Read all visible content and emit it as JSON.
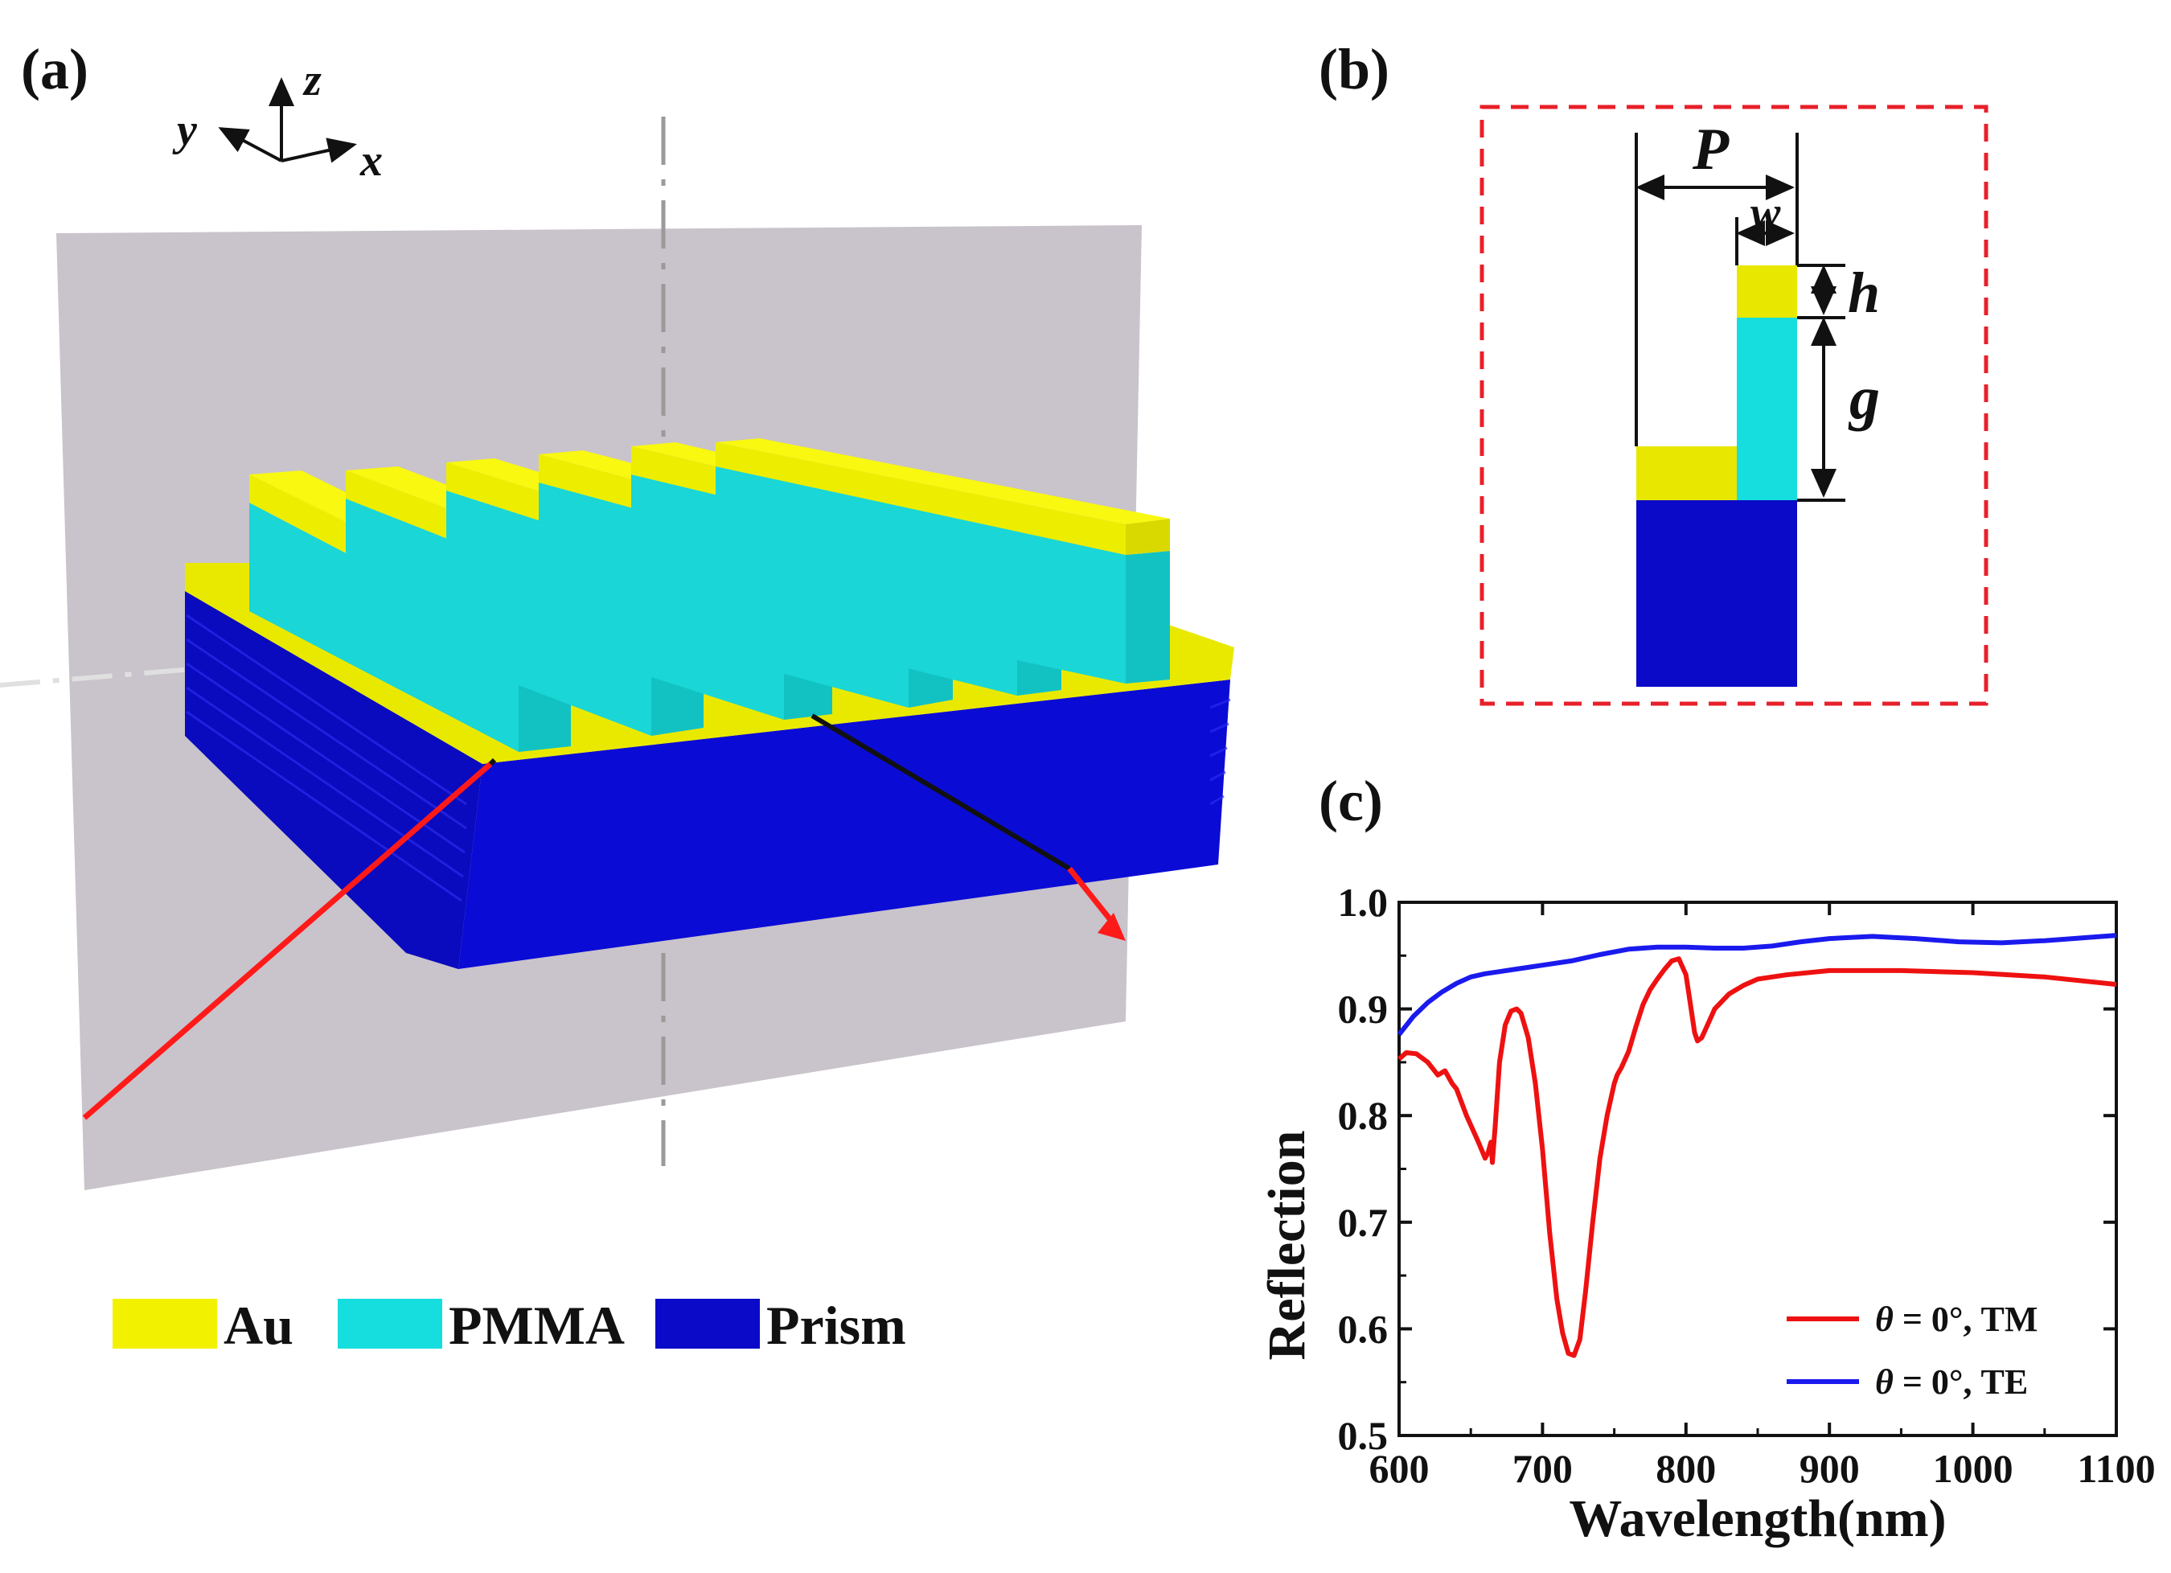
{
  "figure": {
    "panel_a_label": "(a)",
    "panel_b_label": "(b)",
    "panel_c_label": "(c)",
    "axes_3d": {
      "x": "x",
      "y": "y",
      "z": "z"
    },
    "legend": [
      {
        "label": "Au",
        "color": "#f2f200"
      },
      {
        "label": "PMMA",
        "color": "#17dede"
      },
      {
        "label": "Prism",
        "color": "#0a0ac8"
      }
    ],
    "dimensions": {
      "period": "P",
      "width": "w",
      "height": "h",
      "gap": "g"
    },
    "colors": {
      "gold": "#f2f200",
      "pmma": "#17dede",
      "prism": "#0a0ac8",
      "plane": "#c9c3cb",
      "incident_ray": "#ff1a1a",
      "dashed_box": "#e8202a",
      "tm_curve": "#ee1111",
      "te_curve": "#1a1aee"
    }
  },
  "chart_data": {
    "type": "line",
    "title": "",
    "xlabel": "Wavelength(nm)",
    "ylabel": "Reflection",
    "xlim": [
      600,
      1100
    ],
    "ylim": [
      0.5,
      1.0
    ],
    "xticks": [
      600,
      700,
      800,
      900,
      1000,
      1100
    ],
    "yticks": [
      0.5,
      0.6,
      0.7,
      0.8,
      0.9,
      1.0
    ],
    "xtick_labels": [
      "600",
      "700",
      "800",
      "900",
      "1000",
      "1100"
    ],
    "ytick_labels": [
      "0.5",
      "0.6",
      "0.7",
      "0.8",
      "0.9",
      "1.0"
    ],
    "legend_position": "bottom-right",
    "series": [
      {
        "name": "θ = 0°, TM",
        "name_symbol": "θ",
        "name_rest": " = 0°, TM",
        "color": "#ee1111",
        "x": [
          600,
          605,
          612,
          620,
          627,
          632,
          637,
          640,
          647,
          655,
          660,
          662,
          664,
          665,
          667,
          670,
          674,
          678,
          682,
          685,
          690,
          695,
          700,
          705,
          710,
          714,
          718,
          722,
          726,
          730,
          735,
          740,
          745,
          750,
          752,
          755,
          760,
          765,
          770,
          775,
          780,
          785,
          790,
          795,
          800,
          803,
          806,
          808,
          811,
          815,
          820,
          830,
          840,
          850,
          870,
          900,
          950,
          1000,
          1050,
          1100
        ],
        "y": [
          0.853,
          0.859,
          0.858,
          0.85,
          0.838,
          0.842,
          0.83,
          0.825,
          0.8,
          0.776,
          0.76,
          0.765,
          0.775,
          0.756,
          0.79,
          0.85,
          0.885,
          0.898,
          0.9,
          0.896,
          0.873,
          0.83,
          0.768,
          0.69,
          0.628,
          0.596,
          0.577,
          0.575,
          0.59,
          0.635,
          0.7,
          0.76,
          0.8,
          0.83,
          0.838,
          0.845,
          0.86,
          0.883,
          0.904,
          0.918,
          0.928,
          0.937,
          0.945,
          0.947,
          0.932,
          0.905,
          0.878,
          0.87,
          0.873,
          0.885,
          0.9,
          0.914,
          0.922,
          0.928,
          0.932,
          0.936,
          0.936,
          0.934,
          0.93,
          0.923
        ]
      },
      {
        "name": "θ = 0°, TE",
        "name_symbol": "θ",
        "name_rest": " = 0°, TE",
        "color": "#1a1aee",
        "x": [
          600,
          610,
          620,
          630,
          640,
          650,
          660,
          670,
          680,
          700,
          720,
          740,
          760,
          780,
          800,
          820,
          840,
          860,
          880,
          900,
          930,
          960,
          990,
          1020,
          1050,
          1080,
          1100
        ],
        "y": [
          0.876,
          0.893,
          0.906,
          0.916,
          0.924,
          0.93,
          0.933,
          0.935,
          0.937,
          0.941,
          0.945,
          0.951,
          0.956,
          0.958,
          0.958,
          0.957,
          0.957,
          0.959,
          0.963,
          0.966,
          0.968,
          0.966,
          0.963,
          0.962,
          0.964,
          0.967,
          0.969
        ]
      }
    ]
  }
}
